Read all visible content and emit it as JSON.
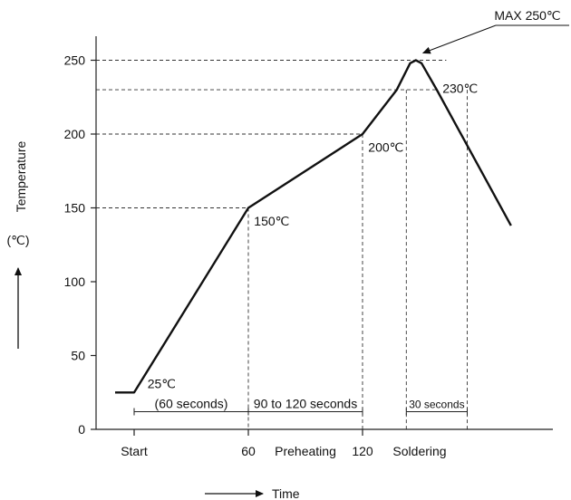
{
  "chart_data": {
    "type": "line",
    "xlabel": "Time",
    "ylabel": "Temperature",
    "yunit": "(℃)",
    "ylim": [
      0,
      270
    ],
    "yticks": [
      0,
      50,
      100,
      150,
      200,
      250
    ],
    "xticks": [
      {
        "x": 0,
        "label": "Start"
      },
      {
        "x": 60,
        "label": "60"
      },
      {
        "x": 120,
        "label": "120"
      }
    ],
    "phase_labels": [
      {
        "x": 90,
        "label": "Preheating"
      },
      {
        "x": 150,
        "label": "Soldering"
      }
    ],
    "series": [
      {
        "points": [
          {
            "x": -10,
            "y": 25
          },
          {
            "x": 0,
            "y": 25
          },
          {
            "x": 60,
            "y": 150
          },
          {
            "x": 120,
            "y": 200
          },
          {
            "x": 138,
            "y": 230
          },
          {
            "x": 145,
            "y": 248
          },
          {
            "x": 148,
            "y": 250
          },
          {
            "x": 151,
            "y": 248
          },
          {
            "x": 159,
            "y": 230
          },
          {
            "x": 198,
            "y": 138
          }
        ]
      }
    ],
    "annotations": [
      {
        "text": "25℃",
        "x": 7,
        "y": 31
      },
      {
        "text": "150℃",
        "x": 63,
        "y": 141
      },
      {
        "text": "200℃",
        "x": 123,
        "y": 191
      },
      {
        "text": "230℃",
        "x": 162,
        "y": 231
      },
      {
        "text": "MAX 250℃",
        "x": 148,
        "y": 250
      }
    ],
    "intervals": [
      {
        "label": "(60 seconds)",
        "from": 0,
        "to": 60
      },
      {
        "label": "90 to 120 seconds",
        "from": 60,
        "to": 120
      },
      {
        "label": "30 seconds",
        "from": 143,
        "to": 175
      }
    ],
    "ref_lines": {
      "horizontal": [
        150,
        200,
        230,
        250
      ],
      "vertical": [
        60,
        120,
        143,
        175
      ]
    }
  }
}
